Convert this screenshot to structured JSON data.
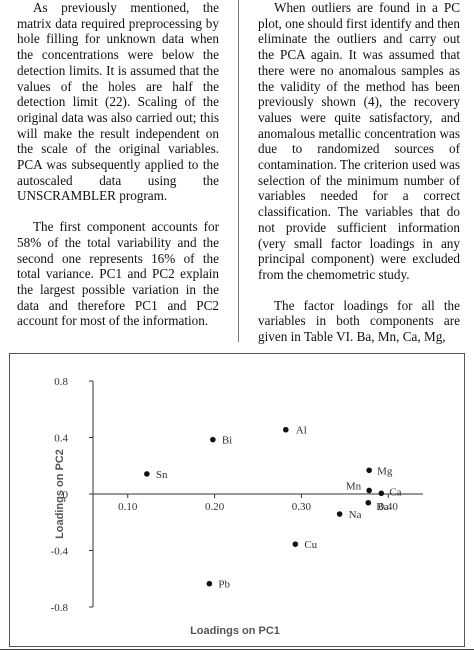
{
  "text": {
    "left": [
      "As previously mentioned, the matrix data required preprocessing by hole filling for unknown data when the concentrations were below the detection limits. It is assumed that the values of the holes are half the detection limit (22). Scaling of the original data was also carried out; this will make the result independent on the scale of the original variables. PCA was subsequently applied to the autoscaled data using the UNSCRAMBLER program.",
      "The first component accounts for 58% of the total variability and the second one represents 16% of the total variance. PC1 and PC2 explain the largest possible variation in the data and therefore PC1 and PC2 account for most of the information."
    ],
    "right": [
      "When outliers are found in a PC plot, one should first identify and then eliminate the outliers and carry out the PCA again. It was assumed that there were no anomalous samples as the validity of the method has been previously shown (4), the recovery values were quite satisfactory, and anomalous metallic concentration was due to randomized sources of contamination. The criterion used was selection of the minimum number of variables needed for a correct classification. The variables that do not provide sufficient information (very small factor loadings in any principal component) were excluded from the chemometric study.",
      "The factor loadings for all the variables in both components are given in Table VI. Ba, Mn, Ca, Mg,"
    ]
  },
  "chart_data": {
    "type": "scatter",
    "xlabel": "Loadings on PC1",
    "ylabel": "Loadings on PC2",
    "xlim": [
      0.06,
      0.44
    ],
    "ylim": [
      -0.8,
      0.8
    ],
    "xticks": [
      0.1,
      0.2,
      0.3,
      0.4
    ],
    "xtick_labels": [
      "0.10",
      "0.20",
      "0.30",
      "0.40"
    ],
    "yticks": [
      0.8,
      0.4,
      0,
      -0.4,
      -0.8
    ],
    "ytick_labels": [
      "0.8",
      "0.4",
      "0",
      "-0.4",
      "-0.8"
    ],
    "grid": false,
    "points": [
      {
        "label": "Sn",
        "x": 0.122,
        "y": 0.142
      },
      {
        "label": "Bi",
        "x": 0.198,
        "y": 0.385
      },
      {
        "label": "Al",
        "x": 0.282,
        "y": 0.455
      },
      {
        "label": "Pb",
        "x": 0.194,
        "y": -0.635
      },
      {
        "label": "Cu",
        "x": 0.293,
        "y": -0.355
      },
      {
        "label": "Na",
        "x": 0.344,
        "y": -0.142
      },
      {
        "label": "Mg",
        "x": 0.378,
        "y": 0.168
      },
      {
        "label": "Mn",
        "x": 0.378,
        "y": 0.025
      },
      {
        "label": "Ca",
        "x": 0.392,
        "y": 0.005
      },
      {
        "label": "Ba",
        "x": 0.377,
        "y": -0.062
      }
    ]
  }
}
